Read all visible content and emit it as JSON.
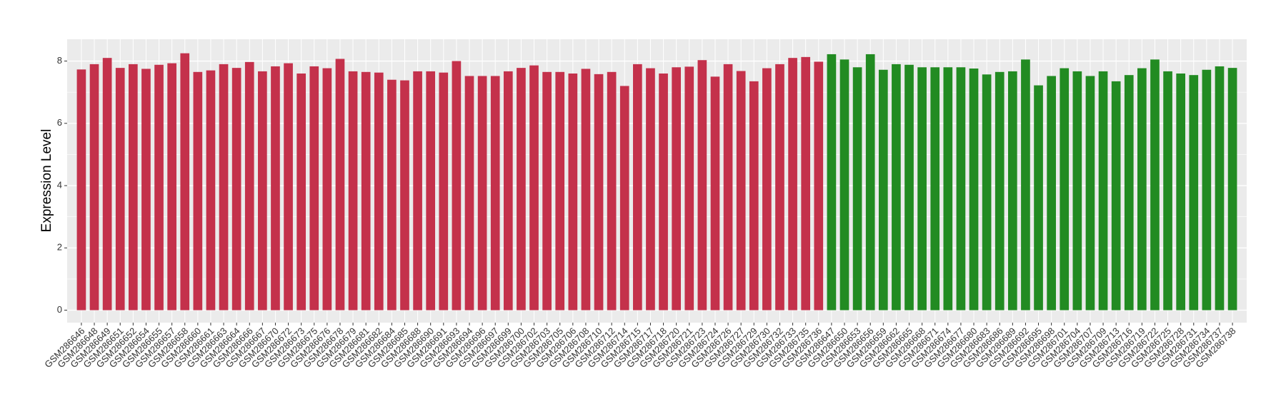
{
  "chart_data": {
    "type": "bar",
    "y_label": "Expression Level",
    "categories": [
      "GSM286646",
      "GSM286648",
      "GSM286649",
      "GSM286651",
      "GSM286652",
      "GSM286654",
      "GSM286655",
      "GSM286657",
      "GSM286658",
      "GSM286660",
      "GSM286661",
      "GSM286663",
      "GSM286664",
      "GSM286666",
      "GSM286667",
      "GSM286670",
      "GSM286672",
      "GSM286673",
      "GSM286675",
      "GSM286676",
      "GSM286678",
      "GSM286679",
      "GSM286681",
      "GSM286682",
      "GSM286684",
      "GSM286685",
      "GSM286688",
      "GSM286690",
      "GSM286691",
      "GSM286693",
      "GSM286694",
      "GSM286696",
      "GSM286697",
      "GSM286699",
      "GSM286700",
      "GSM286702",
      "GSM286703",
      "GSM286705",
      "GSM286706",
      "GSM286708",
      "GSM286710",
      "GSM286712",
      "GSM286714",
      "GSM286715",
      "GSM286717",
      "GSM286718",
      "GSM286720",
      "GSM286721",
      "GSM286723",
      "GSM286724",
      "GSM286726",
      "GSM286727",
      "GSM286729",
      "GSM286730",
      "GSM286732",
      "GSM286733",
      "GSM286735",
      "GSM286736",
      "GSM286647",
      "GSM286650",
      "GSM286653",
      "GSM286656",
      "GSM286659",
      "GSM286662",
      "GSM286665",
      "GSM286668",
      "GSM286671",
      "GSM286674",
      "GSM286677",
      "GSM286680",
      "GSM286683",
      "GSM286686",
      "GSM286689",
      "GSM286692",
      "GSM286695",
      "GSM286698",
      "GSM286701",
      "GSM286704",
      "GSM286707",
      "GSM286709",
      "GSM286713",
      "GSM286716",
      "GSM286719",
      "GSM286722",
      "GSM286725",
      "GSM286728",
      "GSM286731",
      "GSM286734",
      "GSM286737",
      "GSM286738"
    ],
    "values": [
      7.73,
      7.9,
      8.1,
      7.78,
      7.9,
      7.75,
      7.88,
      7.93,
      8.25,
      7.65,
      7.7,
      7.9,
      7.78,
      7.97,
      7.67,
      7.83,
      7.93,
      7.6,
      7.83,
      7.77,
      8.07,
      7.67,
      7.65,
      7.63,
      7.4,
      7.38,
      7.67,
      7.67,
      7.63,
      8.0,
      7.52,
      7.52,
      7.52,
      7.67,
      7.78,
      7.86,
      7.65,
      7.65,
      7.6,
      7.75,
      7.58,
      7.65,
      7.2,
      7.9,
      7.77,
      7.6,
      7.8,
      7.82,
      8.03,
      7.5,
      7.9,
      7.68,
      7.35,
      7.77,
      7.9,
      8.1,
      8.13,
      7.98,
      8.22,
      8.05,
      7.8,
      8.22,
      7.72,
      7.9,
      7.88,
      7.8,
      7.8,
      7.8,
      7.8,
      7.76,
      7.57,
      7.65,
      7.67,
      8.05,
      7.22,
      7.52,
      7.77,
      7.67,
      7.52,
      7.67,
      7.35,
      7.55,
      7.77,
      8.05,
      7.67,
      7.6,
      7.55,
      7.72,
      7.83,
      7.78
    ],
    "group_colors": {
      "first": "#c4314b",
      "second": "#228b22"
    },
    "first_group_count": 58,
    "ylim": [
      -0.4,
      8.7
    ],
    "yticks": [
      0,
      2,
      4,
      6,
      8
    ],
    "grid": true
  }
}
